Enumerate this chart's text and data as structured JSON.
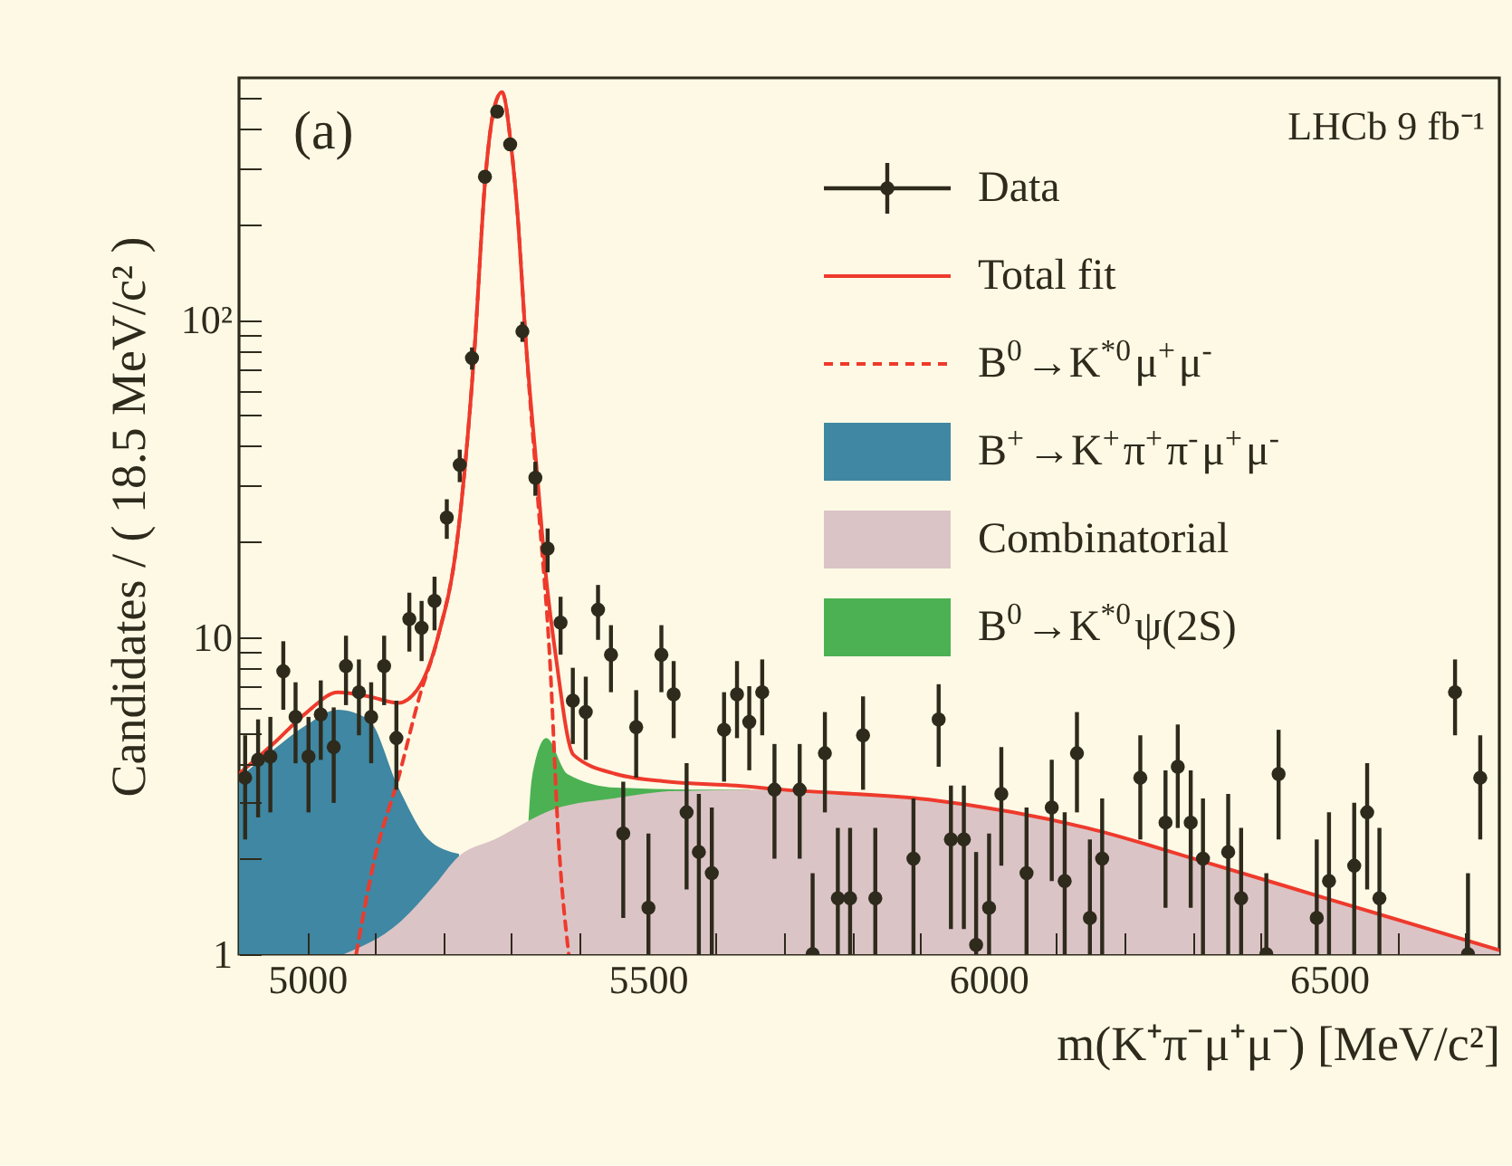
{
  "chart_data": {
    "type": "scatter",
    "xlabel": "m(K⁺π⁻μ⁺μ⁻) [MeV/c²]",
    "ylabel": "Candidates / ( 18.5 MeV/c² )",
    "log": "y",
    "legend": "top right",
    "annotations": [
      "(a)",
      "LHCb 9 fb⁻¹"
    ],
    "xlim": [
      4900,
      6750
    ],
    "xticks": [
      5000,
      {
        "value": 5100,
        "label": null
      },
      {
        "value": 5200,
        "label": null
      },
      {
        "value": 5300,
        "label": null
      },
      {
        "value": 5400,
        "label": null
      },
      5500,
      {
        "value": 5600,
        "label": null
      },
      {
        "value": 5700,
        "label": null
      },
      {
        "value": 5800,
        "label": null
      },
      {
        "value": 5900,
        "label": null
      },
      6000,
      {
        "value": 6100,
        "label": null
      },
      {
        "value": 6200,
        "label": null
      },
      {
        "value": 6300,
        "label": null
      },
      {
        "value": 6400,
        "label": null
      },
      6500,
      {
        "value": 6600,
        "label": null
      },
      {
        "value": 6700,
        "label": null
      }
    ],
    "ylim": [
      1,
      580
    ],
    "yticks": [
      1,
      {
        "value": 2,
        "label": null
      },
      {
        "value": 3,
        "label": null
      },
      {
        "value": 4,
        "label": null
      },
      {
        "value": 5,
        "label": null
      },
      {
        "value": 6,
        "label": null
      },
      {
        "value": 7,
        "label": null
      },
      {
        "value": 8,
        "label": null
      },
      {
        "value": 9,
        "label": null
      },
      10,
      {
        "value": 20,
        "label": null
      },
      {
        "value": 30,
        "label": null
      },
      {
        "value": 40,
        "label": null
      },
      {
        "value": 50,
        "label": null
      },
      {
        "value": 60,
        "label": null
      },
      {
        "value": 70,
        "label": null
      },
      {
        "value": 80,
        "label": null
      },
      {
        "value": 90,
        "label": null
      },
      {
        "value": 100,
        "label": "10²"
      },
      {
        "value": 200,
        "label": null
      },
      {
        "value": 300,
        "label": null
      },
      {
        "value": 400,
        "label": null
      },
      {
        "value": 500,
        "label": null
      }
    ],
    "series": [
      {
        "name": "Data",
        "marker": "circle",
        "color": "#2e2a1c",
        "x": [
          4909,
          4928,
          4946,
          4965,
          4983,
          5002,
          5020,
          5039,
          5057,
          5076,
          5094,
          5113,
          5131,
          5150,
          5168,
          5187,
          5205,
          5224,
          5242,
          5261,
          5279,
          5298,
          5316,
          5335,
          5353,
          5372,
          5390,
          5409,
          5427,
          5446,
          5464,
          5483,
          5501,
          5520,
          5538,
          5557,
          5575,
          5594,
          5612,
          5631,
          5649,
          5668,
          5686,
          5723,
          5742,
          5760,
          5779,
          5797,
          5816,
          5834,
          5890,
          5927,
          5945,
          5964,
          5982,
          6001,
          6019,
          6056,
          6093,
          6112,
          6130,
          6149,
          6167,
          6223,
          6260,
          6278,
          6297,
          6315,
          6352,
          6371,
          6408,
          6426,
          6482,
          6500,
          6537,
          6556,
          6574,
          6685,
          6704,
          6722
        ],
        "values": [
          3.6,
          4.1,
          4.2,
          7.8,
          5.6,
          4.2,
          5.7,
          4.5,
          8.1,
          6.7,
          5.6,
          8.1,
          4.8,
          11.4,
          10.7,
          13,
          23.8,
          34.9,
          75.8,
          283,
          454,
          358,
          92,
          31.8,
          19,
          11.1,
          6.3,
          5.8,
          12.2,
          8.8,
          2.4,
          5.2,
          1.4,
          8.8,
          6.6,
          2.8,
          2.1,
          1.8,
          5.1,
          6.6,
          5.4,
          6.7,
          3.3,
          3.3,
          1.0,
          4.3,
          1.5,
          1.5,
          4.9,
          1.5,
          2.0,
          5.5,
          2.3,
          2.3,
          1.07,
          1.4,
          3.2,
          1.8,
          2.9,
          1.7,
          4.3,
          1.3,
          2.0,
          3.6,
          2.6,
          3.9,
          2.6,
          2.0,
          2.1,
          1.5,
          1.0,
          3.7,
          1.3,
          1.7,
          1.9,
          2.8,
          1.5,
          6.7,
          1.0,
          3.6
        ],
        "errors": [
          1.3,
          1.4,
          1.4,
          1.9,
          1.6,
          1.4,
          1.6,
          1.5,
          2.0,
          1.8,
          1.6,
          2.0,
          1.5,
          2.4,
          2.3,
          2.5,
          3.4,
          4.1,
          6.1,
          12,
          15,
          13,
          6.7,
          3.9,
          3.0,
          2.3,
          1.7,
          1.7,
          2.4,
          2.1,
          1.1,
          1.6,
          [
            1,
            2.4
          ],
          2.1,
          1.8,
          1.2,
          [
            1,
            3.2
          ],
          [
            1,
            2.9
          ],
          1.6,
          1.8,
          1.6,
          1.8,
          1.3,
          1.3,
          [
            1,
            1.8
          ],
          1.5,
          [
            1,
            2.5
          ],
          [
            1,
            2.5
          ],
          1.6,
          [
            1,
            2.5
          ],
          [
            1,
            3.1
          ],
          1.6,
          [
            1.2,
            3.4
          ],
          [
            1.2,
            3.4
          ],
          [
            1,
            2.1
          ],
          [
            1,
            2.4
          ],
          1.3,
          [
            1,
            2.9
          ],
          1.2,
          [
            1,
            2.8
          ],
          1.5,
          [
            1,
            2.3
          ],
          [
            1,
            3.1
          ],
          1.3,
          1.2,
          1.4,
          1.2,
          [
            1,
            3.1
          ],
          [
            1,
            3.2
          ],
          [
            1,
            2.5
          ],
          [
            1,
            1.8
          ],
          1.4,
          [
            1,
            2.3
          ],
          [
            1,
            2.8
          ],
          [
            1,
            3.0
          ],
          1.2,
          [
            1,
            2.5
          ],
          1.8,
          [
            1,
            1.8
          ],
          1.3
        ]
      },
      {
        "name": "Total fit",
        "type": "line",
        "color": "#ee3a2c",
        "x": [
          4900,
          4950,
          5000,
          5045,
          5090,
          5134,
          5165,
          5192,
          5220,
          5245,
          5262,
          5275,
          5286,
          5299,
          5310,
          5320,
          5338,
          5350,
          5365,
          5391,
          5453,
          5530,
          5630,
          5700,
          5913,
          6145,
          6322,
          6500,
          6750
        ],
        "values": [
          3.7,
          4.6,
          5.8,
          6.7,
          6.5,
          6.2,
          7,
          10,
          20,
          77,
          287,
          470,
          523,
          360,
          200,
          92,
          32,
          16,
          8.7,
          4.25,
          3.7,
          3.5,
          3.4,
          3.3,
          3.07,
          2.5,
          1.94,
          1.49,
          1.03
        ]
      },
      {
        "name": "B$^{0}$→K$^{*0}$μ$^{+}$μ$^{-}$",
        "type": "line",
        "line_style": "dashed",
        "color": "#ee3a2c",
        "x": [
          5072,
          5099,
          5134,
          5165,
          5192,
          5220,
          5245,
          5262,
          5275,
          5286,
          5299,
          5310,
          5320,
          5340,
          5356,
          5369,
          5384
        ],
        "values": [
          1,
          2.0,
          3.6,
          6.5,
          10,
          20,
          77,
          287,
          470,
          523,
          360,
          200,
          92,
          25,
          8.7,
          2.3,
          1
        ]
      },
      {
        "name": "B$^{+}$→K$^{+}$π$^{+}$π$^{-}$μ$^{+}$μ$^{-}$",
        "type": "area",
        "color": "#3f87a2",
        "x": [
          4900,
          4950,
          5000,
          5045,
          5090,
          5134,
          5178,
          5223
        ],
        "values": [
          3.6,
          4.4,
          5.3,
          5.9,
          5.5,
          3.35,
          2.3,
          2.07
        ]
      },
      {
        "name": "Combinatorial",
        "type": "area",
        "color": "#dbc4c6",
        "x": [
          5054,
          5134,
          5187,
          5222,
          5275,
          5365,
          5450,
          5541,
          5700,
          5913,
          6145,
          6322,
          6500,
          6750
        ],
        "values": [
          1,
          1.25,
          1.65,
          2.03,
          2.3,
          2.88,
          3.1,
          3.27,
          3.3,
          3.07,
          2.5,
          1.94,
          1.49,
          1.03
        ]
      },
      {
        "name": "B$^{0}$→K$^{*0}$ψ(2S)",
        "type": "area",
        "color": "#4cb152",
        "x": [
          5325,
          5330,
          5351,
          5382,
          5453,
          5586,
          5650
        ],
        "values": [
          2.6,
          3.6,
          4.8,
          3.7,
          3.35,
          3.3,
          3.3
        ]
      }
    ]
  }
}
